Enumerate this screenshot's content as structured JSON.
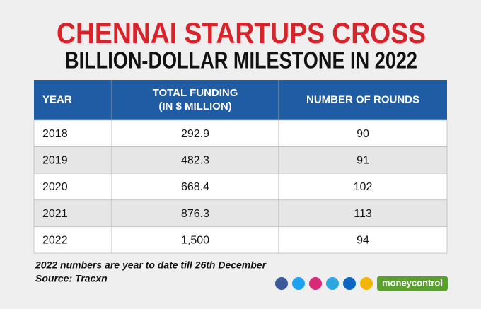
{
  "header": {
    "title_line1": "CHENNAI STARTUPS CROSS",
    "title_line2": "BILLION-DOLLAR MILESTONE IN 2022"
  },
  "table": {
    "columns": [
      [
        "YEAR"
      ],
      [
        "TOTAL FUNDING",
        "(IN $ MILLION)"
      ],
      [
        "NUMBER OF ROUNDS"
      ]
    ],
    "rows": [
      [
        "2018",
        "292.9",
        "90"
      ],
      [
        "2019",
        "482.3",
        "91"
      ],
      [
        "2020",
        "668.4",
        "102"
      ],
      [
        "2021",
        "876.3",
        "113"
      ],
      [
        "2022",
        "1,500",
        "94"
      ]
    ]
  },
  "notes": [
    "2022 numbers are year to date till 26th December",
    "Source: Tracxn"
  ],
  "brand": "moneycontrol"
}
